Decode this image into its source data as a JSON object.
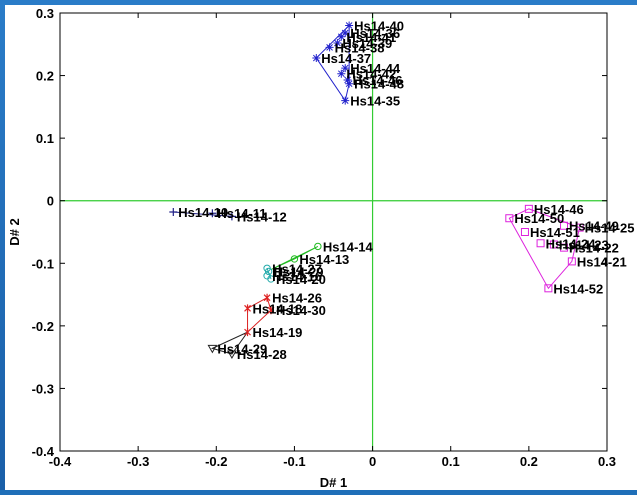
{
  "chart_data": {
    "type": "scatter",
    "xlabel": "D# 1",
    "ylabel": "D# 2",
    "xlim": [
      -0.4,
      0.3
    ],
    "ylim": [
      -0.4,
      0.3
    ],
    "xticks": [
      "-0.4",
      "-0.3",
      "-0.2",
      "-0.1",
      "0",
      "0.1",
      "0.2",
      "0.3"
    ],
    "yticks": [
      "0.3",
      "0.2",
      "0.1",
      "0",
      "-0.1",
      "-0.2",
      "-0.3",
      "-0.4"
    ],
    "reference_lines": {
      "x": 0,
      "y": 0,
      "color": "#33cc33"
    },
    "groups": [
      {
        "color": "#2222cc",
        "marker": "star",
        "points": [
          {
            "label": "Hs14-40",
            "x": -0.03,
            "y": 0.28
          },
          {
            "label": "Hs14-36",
            "x": -0.035,
            "y": 0.268
          },
          {
            "label": "Hs14-41",
            "x": -0.04,
            "y": 0.262
          },
          {
            "label": "Hs14-39",
            "x": -0.045,
            "y": 0.252
          },
          {
            "label": "Hs14-38",
            "x": -0.055,
            "y": 0.245
          },
          {
            "label": "Hs14-37",
            "x": -0.072,
            "y": 0.228
          },
          {
            "label": "Hs14-44",
            "x": -0.035,
            "y": 0.212
          },
          {
            "label": "Hs14-42",
            "x": -0.04,
            "y": 0.203
          },
          {
            "label": "Hs14-46",
            "x": -0.032,
            "y": 0.193
          },
          {
            "label": "Hs14-48",
            "x": -0.03,
            "y": 0.187
          },
          {
            "label": "Hs14-35",
            "x": -0.035,
            "y": 0.16
          }
        ],
        "hull": [
          [
            -0.03,
            0.28
          ],
          [
            -0.072,
            0.228
          ],
          [
            -0.035,
            0.16
          ],
          [
            -0.03,
            0.187
          ]
        ]
      },
      {
        "color": "#222288",
        "marker": "plus",
        "points": [
          {
            "label": "Hs14-10",
            "x": -0.255,
            "y": -0.018
          },
          {
            "label": "Hs14-11",
            "x": -0.205,
            "y": -0.02
          },
          {
            "label": "Hs14-12",
            "x": -0.18,
            "y": -0.025
          }
        ],
        "hull": [
          [
            -0.255,
            -0.018
          ],
          [
            -0.18,
            -0.025
          ]
        ]
      },
      {
        "color": "#22bb22",
        "marker": "circle",
        "points": [
          {
            "label": "Hs14-14",
            "x": -0.07,
            "y": -0.073
          },
          {
            "label": "Hs14-13",
            "x": -0.1,
            "y": -0.093
          }
        ],
        "hull": [
          [
            -0.07,
            -0.073
          ],
          [
            -0.1,
            -0.093
          ],
          [
            -0.13,
            -0.11
          ]
        ]
      },
      {
        "color": "#22aaaa",
        "marker": "circle",
        "points": [
          {
            "label": "Hs14-27",
            "x": -0.135,
            "y": -0.108
          },
          {
            "label": "Hs14-29",
            "x": -0.133,
            "y": -0.113
          },
          {
            "label": "Hs14-16",
            "x": -0.135,
            "y": -0.12
          },
          {
            "label": "Hs14-20",
            "x": -0.13,
            "y": -0.125
          }
        ],
        "hull": [
          [
            -0.135,
            -0.108
          ],
          [
            -0.13,
            -0.125
          ]
        ]
      },
      {
        "color": "#dd2222",
        "marker": "cross",
        "points": [
          {
            "label": "Hs14-26",
            "x": -0.135,
            "y": -0.155
          },
          {
            "label": "Hs14-18",
            "x": -0.16,
            "y": -0.172
          },
          {
            "label": "Hs14-30",
            "x": -0.13,
            "y": -0.175
          },
          {
            "label": "Hs14-19",
            "x": -0.16,
            "y": -0.21
          }
        ],
        "hull": [
          [
            -0.135,
            -0.155
          ],
          [
            -0.16,
            -0.172
          ],
          [
            -0.16,
            -0.21
          ],
          [
            -0.13,
            -0.175
          ]
        ]
      },
      {
        "color": "#222222",
        "marker": "triangle",
        "points": [
          {
            "label": "Hs14-29",
            "x": -0.205,
            "y": -0.236
          },
          {
            "label": "Hs14-28",
            "x": -0.18,
            "y": -0.245
          }
        ],
        "hull": [
          [
            -0.205,
            -0.236
          ],
          [
            -0.16,
            -0.21
          ],
          [
            -0.18,
            -0.245
          ]
        ]
      },
      {
        "color": "#dd22dd",
        "marker": "square",
        "points": [
          {
            "label": "Hs14-46",
            "x": 0.2,
            "y": -0.013
          },
          {
            "label": "Hs14-50",
            "x": 0.175,
            "y": -0.028
          },
          {
            "label": "Hs14-49",
            "x": 0.245,
            "y": -0.04
          },
          {
            "label": "Hs14-25",
            "x": 0.265,
            "y": -0.043
          },
          {
            "label": "Hs14-51",
            "x": 0.195,
            "y": -0.05
          },
          {
            "label": "Hs14-24",
            "x": 0.215,
            "y": -0.068
          },
          {
            "label": "Hs14-22",
            "x": 0.245,
            "y": -0.075
          },
          {
            "label": "Hs14-23",
            "x": 0.232,
            "y": -0.07
          },
          {
            "label": "Hs14-21",
            "x": 0.255,
            "y": -0.097
          },
          {
            "label": "Hs14-52",
            "x": 0.225,
            "y": -0.14
          }
        ],
        "hull": [
          [
            0.2,
            -0.013
          ],
          [
            0.175,
            -0.028
          ],
          [
            0.225,
            -0.14
          ],
          [
            0.255,
            -0.097
          ],
          [
            0.265,
            -0.043
          ]
        ]
      }
    ]
  }
}
